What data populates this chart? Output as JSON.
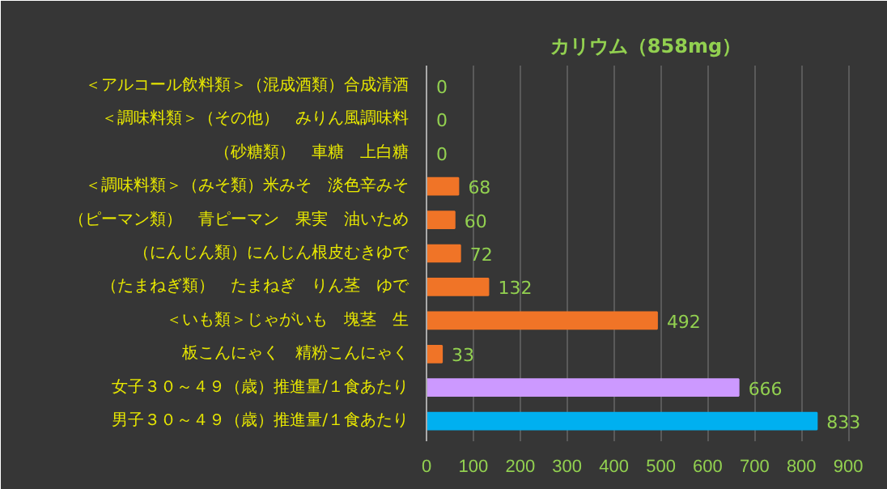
{
  "chart_data": {
    "type": "bar",
    "orientation": "horizontal",
    "title": "カリウム（858mg）",
    "categories": [
      "＜アルコール飲料類＞（混成酒類）合成清酒",
      "＜調味料類＞（その他）　みりん風調味料",
      "（砂糖類）　車糖　上白糖",
      "＜調味料類＞（みそ類）米みそ　淡色辛みそ",
      "（ピーマン類）　青ピーマン　果実　油いため",
      "（にんじん類）にんじん根皮むきゆで",
      "（たまねぎ類）　たまねぎ　りん茎　ゆで",
      "＜いも類＞じゃがいも　塊茎　生",
      "板こんにゃく　精粉こんにゃく",
      "女子３０～４９（歳）推進量/１食あたり",
      "男子３０～４９（歳）推進量/１食あたり"
    ],
    "values": [
      0,
      0,
      0,
      68,
      60,
      72,
      132,
      492,
      33,
      666,
      833
    ],
    "colors": [
      "#f07427",
      "#f07427",
      "#f07427",
      "#f07427",
      "#f07427",
      "#f07427",
      "#f07427",
      "#f07427",
      "#f07427",
      "#cc99ff",
      "#00b0f0"
    ],
    "xlim": [
      0,
      900
    ],
    "xticks": [
      0,
      100,
      200,
      300,
      400,
      500,
      600,
      700,
      800,
      900
    ],
    "grid": "x",
    "data_labels": true
  }
}
